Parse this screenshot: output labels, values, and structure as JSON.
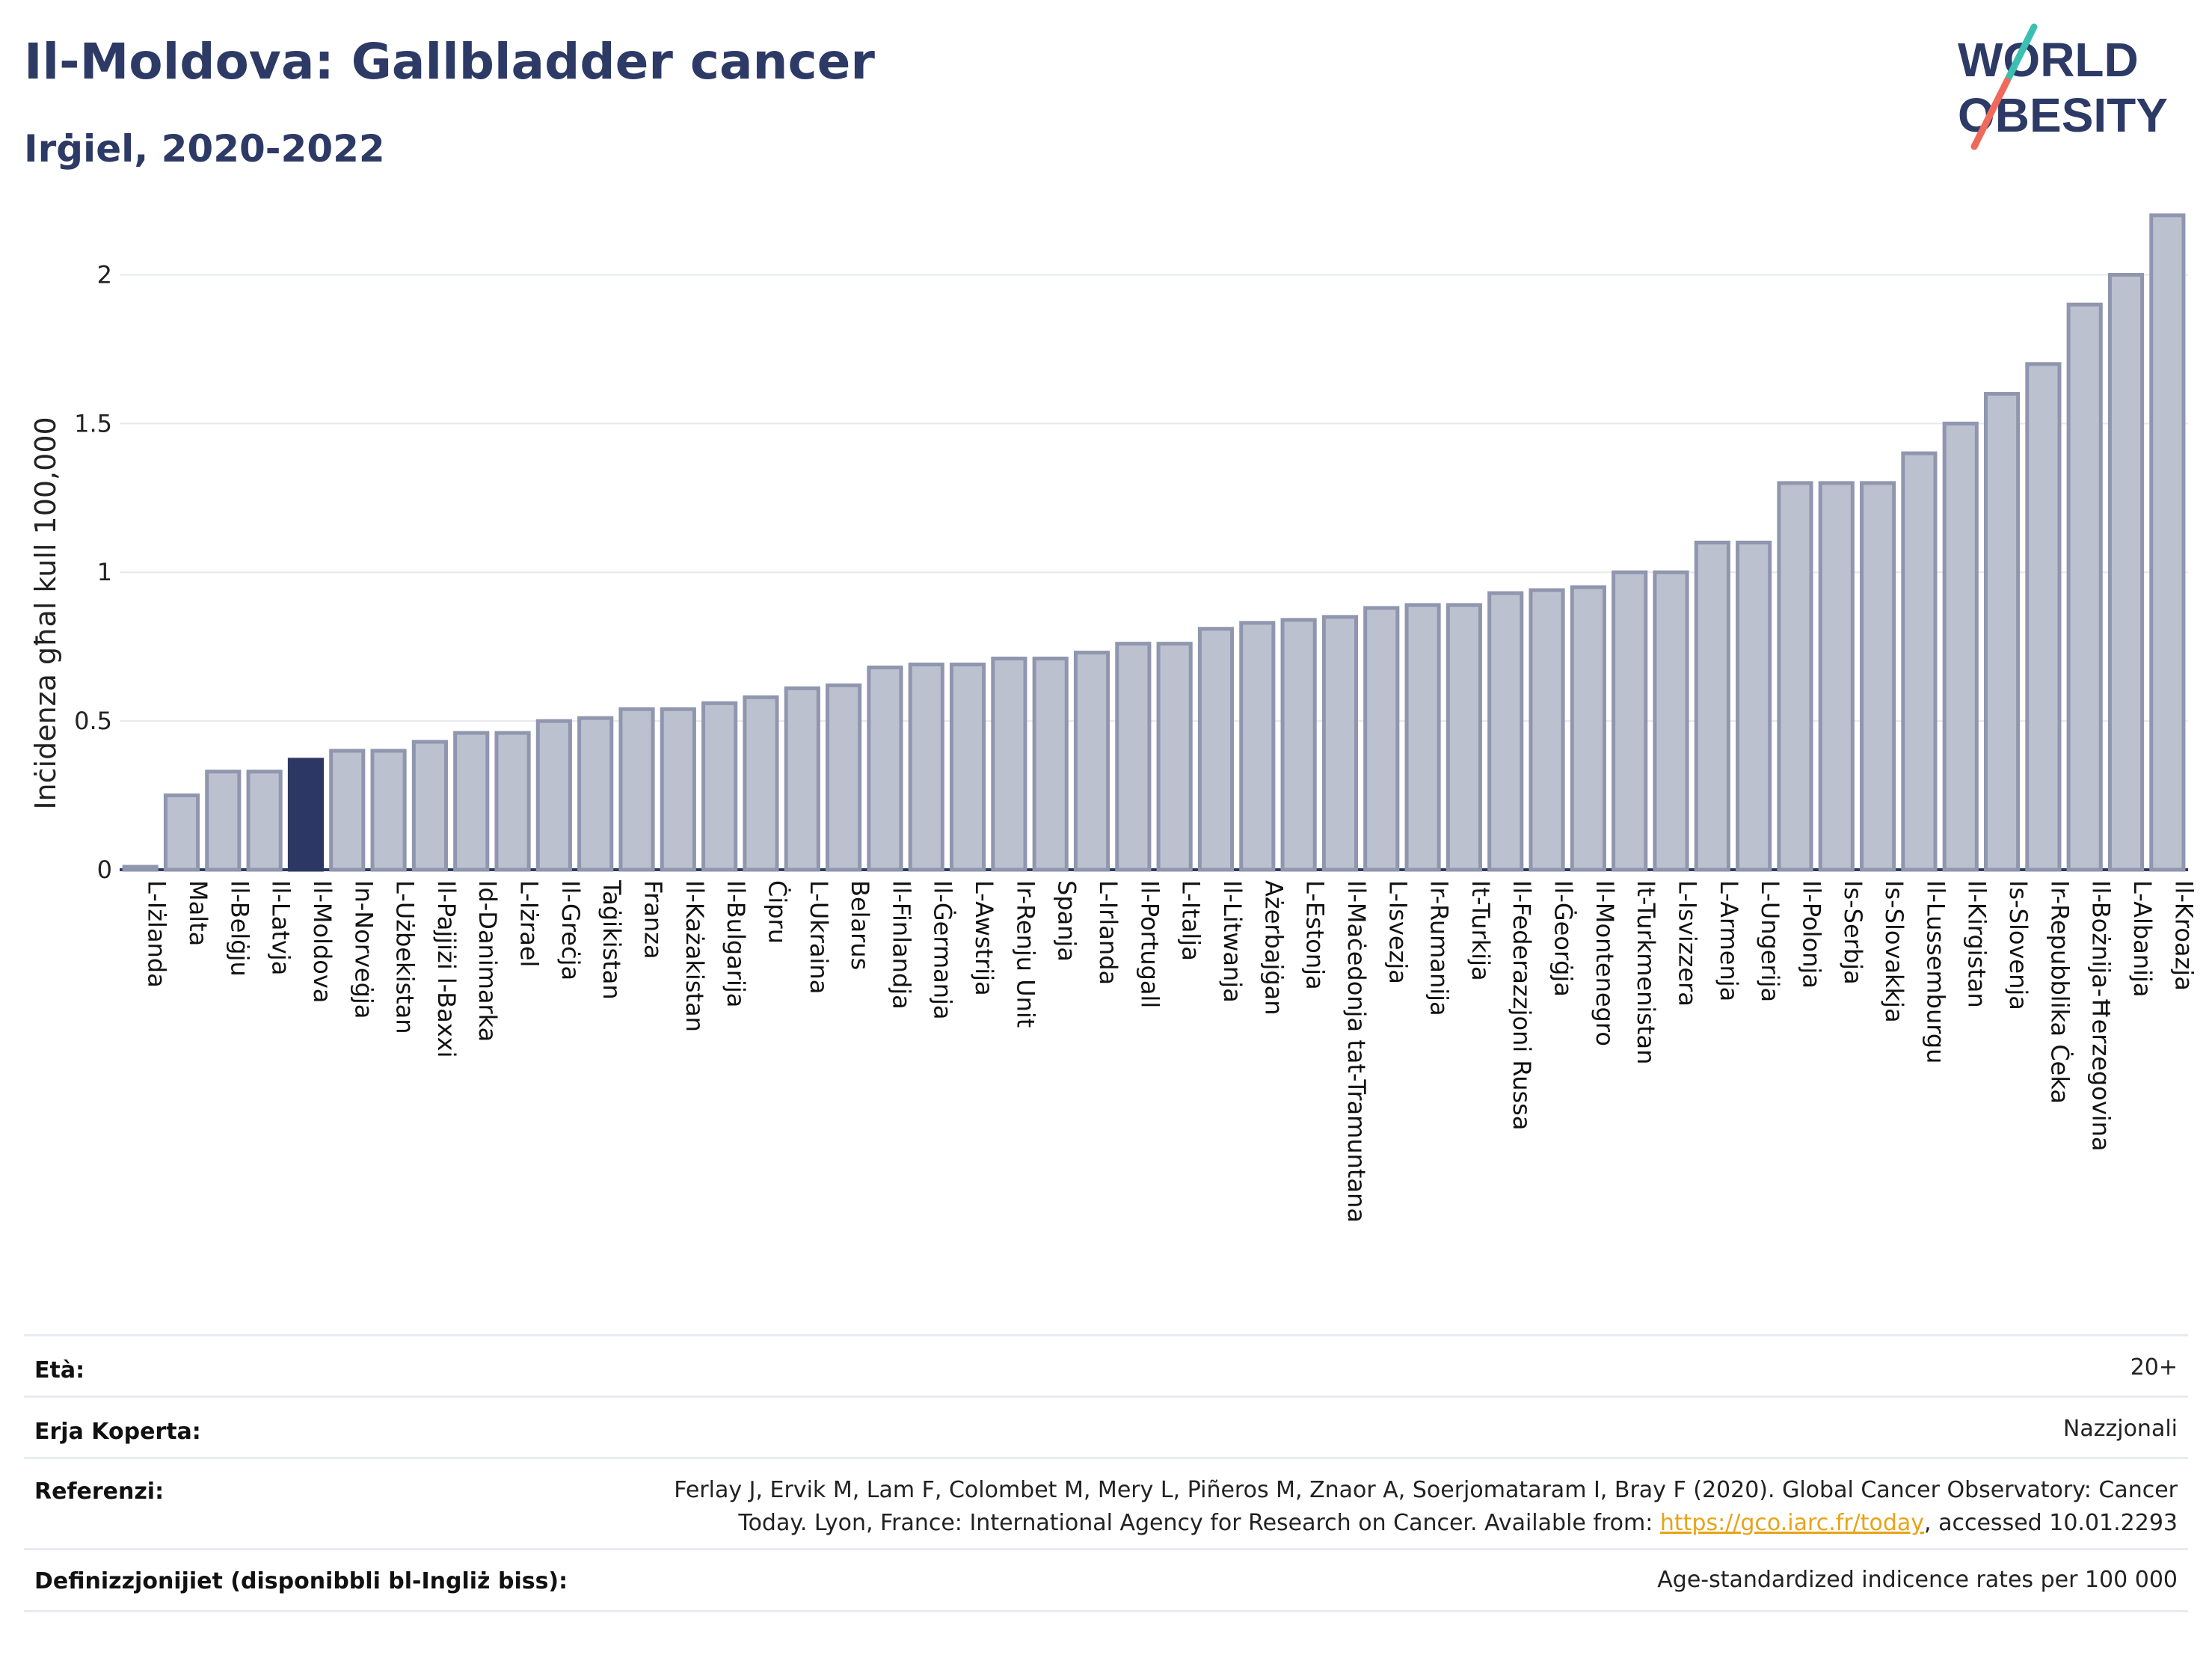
{
  "title": "Il-Moldova: Gallbladder cancer",
  "subtitle": "Irġiel, 2020-2022",
  "logo": {
    "line1": "WORLD",
    "line2": "OBESITY"
  },
  "colors": {
    "highlight": "#2c3764",
    "bar": "#bcc1d0",
    "bar_stroke": "#8f96ae",
    "title": "#2d3a66",
    "link": "#e8a317"
  },
  "chart_data": {
    "type": "bar",
    "title": "Il-Moldova: Gallbladder cancer",
    "subtitle": "Irġiel, 2020-2022",
    "ylabel": "Inċidenza għal kull 100,000",
    "xlabel": "",
    "ylim": [
      0,
      2.25
    ],
    "yticks": [
      0,
      0.5,
      1,
      1.5,
      2
    ],
    "ytick_labels": [
      "0",
      "0.5",
      "1",
      "1.5",
      "2"
    ],
    "grid": true,
    "highlight": "Il-Moldova",
    "categories": [
      "L-Iżlanda",
      "Malta",
      "Il-Belġju",
      "Il-Latvja",
      "Il-Moldova",
      "In-Norveġja",
      "L-Użbekistan",
      "Il-Pajjiżi l-Baxxi",
      "Id-Danimarka",
      "L-Iżrael",
      "Il-Greċja",
      "Taġikistan",
      "Franza",
      "Il-Każakistan",
      "Il-Bulgarija",
      "Ċipru",
      "L-Ukraina",
      "Belarus",
      "Il-Finlandja",
      "Il-Ġermanja",
      "L-Awstrija",
      "Ir-Renju Unit",
      "Spanja",
      "L-Irlanda",
      "Il-Portugall",
      "L-Italja",
      "Il-Litwanja",
      "Ażerbajġan",
      "L-Estonja",
      "Il-Maċedonja tat-Tramuntana",
      "L-Isvezja",
      "Ir-Rumanija",
      "It-Turkija",
      "Il-Federazzjoni Russa",
      "Il-Ġeorġja",
      "Il-Montenegro",
      "It-Turkmenistan",
      "L-Isvizzera",
      "L-Armenja",
      "L-Ungerija",
      "Il-Polonja",
      "Is-Serbja",
      "Is-Slovakkja",
      "Il-Lussemburgu",
      "Il-Kirgistan",
      "Is-Slovenja",
      "Ir-Repubblika Ċeka",
      "Il-Bożnija-Ħerzegovina",
      "L-Albanija",
      "Il-Kroazja"
    ],
    "values": [
      0.01,
      0.25,
      0.33,
      0.33,
      0.37,
      0.4,
      0.4,
      0.43,
      0.46,
      0.46,
      0.5,
      0.51,
      0.54,
      0.54,
      0.56,
      0.58,
      0.61,
      0.62,
      0.68,
      0.69,
      0.69,
      0.71,
      0.71,
      0.73,
      0.76,
      0.76,
      0.81,
      0.83,
      0.84,
      0.85,
      0.88,
      0.89,
      0.89,
      0.93,
      0.94,
      0.95,
      1.0,
      1.0,
      1.1,
      1.1,
      1.3,
      1.3,
      1.3,
      1.4,
      1.5,
      1.6,
      1.7,
      1.9,
      2.0,
      2.2
    ]
  },
  "meta": {
    "age_label": "Età:",
    "age_value": "20+",
    "coverage_label": "Erja Koperta:",
    "coverage_value": "Nazzjonali",
    "references_label": "Referenzi:",
    "references_line1": "Ferlay J, Ervik M, Lam F, Colombet M, Mery L, Piñeros M, Znaor A, Soerjomataram I, Bray F (2020). Global Cancer Observatory: Cancer",
    "references_line2_pre": "Today. Lyon, France: International Agency for Research on Cancer. Available from: ",
    "references_link": "https://gco.iarc.fr/today",
    "references_line2_post": ", accessed 10.01.2293",
    "definitions_label": "Definizzjonijiet (disponibbli bl-Ingliż biss):",
    "definitions_value": "Age-standardized indicence rates per 100 000"
  }
}
